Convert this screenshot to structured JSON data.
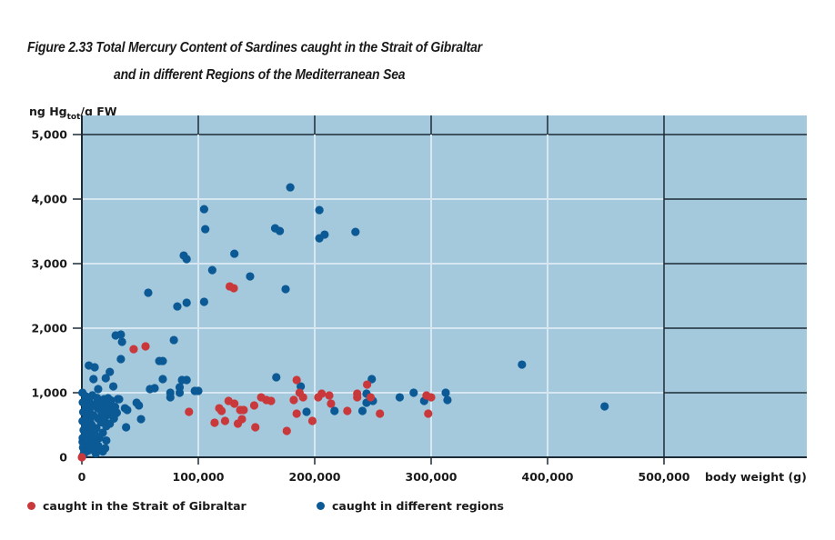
{
  "chart_data": {
    "type": "scatter",
    "title_line1": "Figure 2.33  Total Mercury Content of Sardines caught in the Strait of Gibraltar",
    "title_line2": "and in different Regions of the Mediterranean Sea",
    "ylabel_main": "ng Hg",
    "ylabel_sub": "tot",
    "ylabel_tail": "/g FW",
    "xlabel": "body weight (g)",
    "xlim": [
      0,
      625000
    ],
    "ylim": [
      0,
      5300
    ],
    "x_ticks": [
      0,
      100000,
      200000,
      300000,
      400000,
      500000
    ],
    "x_tick_labels": [
      "0",
      "100,000",
      "200,000",
      "300,000",
      "400,000",
      "500,000"
    ],
    "y_ticks": [
      0,
      1000,
      2000,
      3000,
      4000,
      5000
    ],
    "y_tick_labels": [
      "0",
      "1,000",
      "2,000",
      "3,000",
      "4,000",
      "5,000"
    ],
    "grid": true,
    "legend_position": "bottom-left",
    "colors": {
      "background": "#a4c8dc",
      "grid_light": "#d6e7f1",
      "grid_dark": "#1c2a36",
      "gibraltar": "#c9383b",
      "regions": "#0b5a96"
    },
    "series": [
      {
        "name": "caught in the Strait of Gibraltar",
        "color": "#c9383b",
        "points": [
          [
            0,
            0
          ],
          [
            44500,
            1675
          ],
          [
            54700,
            1718
          ],
          [
            92000,
            704
          ],
          [
            127000,
            2647
          ],
          [
            130500,
            2619
          ],
          [
            114000,
            535
          ],
          [
            118000,
            760
          ],
          [
            120000,
            718
          ],
          [
            123000,
            563
          ],
          [
            126000,
            873
          ],
          [
            131000,
            831
          ],
          [
            134000,
            521
          ],
          [
            136000,
            732
          ],
          [
            139000,
            732
          ],
          [
            137500,
            591
          ],
          [
            148000,
            803
          ],
          [
            149000,
            465
          ],
          [
            154000,
            929
          ],
          [
            158500,
            887
          ],
          [
            162500,
            873
          ],
          [
            176000,
            408
          ],
          [
            182000,
            887
          ],
          [
            184500,
            1197
          ],
          [
            184500,
            676
          ],
          [
            187000,
            1000
          ],
          [
            190000,
            929
          ],
          [
            198000,
            563
          ],
          [
            203000,
            929
          ],
          [
            206000,
            986
          ],
          [
            212500,
            958
          ],
          [
            214000,
            831
          ],
          [
            228000,
            718
          ],
          [
            236500,
            986
          ],
          [
            236500,
            929
          ],
          [
            245000,
            1126
          ],
          [
            248000,
            929
          ],
          [
            256000,
            676
          ],
          [
            296000,
            958
          ],
          [
            300000,
            929
          ],
          [
            297500,
            676
          ]
        ]
      },
      {
        "name": "caught in different regions",
        "color": "#0b5a96",
        "points": [
          [
            105000,
            3844
          ],
          [
            106000,
            3534
          ],
          [
            131000,
            3154
          ],
          [
            87500,
            3126
          ],
          [
            90000,
            3070
          ],
          [
            112000,
            2900
          ],
          [
            144500,
            2802
          ],
          [
            105000,
            2408
          ],
          [
            90000,
            2394
          ],
          [
            82000,
            2337
          ],
          [
            57000,
            2549
          ],
          [
            179000,
            4182
          ],
          [
            166000,
            3548
          ],
          [
            170000,
            3506
          ],
          [
            175000,
            2605
          ],
          [
            204000,
            3830
          ],
          [
            208500,
            3450
          ],
          [
            204000,
            3393
          ],
          [
            235000,
            3492
          ],
          [
            378000,
            1436
          ],
          [
            449000,
            788
          ],
          [
            79000,
            1816
          ],
          [
            29000,
            1887
          ],
          [
            33500,
            1901
          ],
          [
            34500,
            1788
          ],
          [
            33500,
            1521
          ],
          [
            6000,
            1422
          ],
          [
            11000,
            1394
          ],
          [
            66500,
            1492
          ],
          [
            69500,
            1492
          ],
          [
            24000,
            1323
          ],
          [
            20500,
            1225
          ],
          [
            10000,
            1211
          ],
          [
            69500,
            1211
          ],
          [
            86000,
            1197
          ],
          [
            90000,
            1197
          ],
          [
            167000,
            1239
          ],
          [
            249000,
            1211
          ],
          [
            188000,
            1098
          ],
          [
            27000,
            1098
          ],
          [
            14000,
            1056
          ],
          [
            58500,
            1056
          ],
          [
            62500,
            1070
          ],
          [
            76000,
            1000
          ],
          [
            76000,
            929
          ],
          [
            84000,
            1000
          ],
          [
            84000,
            1084
          ],
          [
            97000,
            1028
          ],
          [
            100000,
            1028
          ],
          [
            193000,
            704
          ],
          [
            217000,
            718
          ],
          [
            241000,
            718
          ],
          [
            244500,
            986
          ],
          [
            247500,
            887
          ],
          [
            244500,
            845
          ],
          [
            250000,
            873
          ],
          [
            273000,
            929
          ],
          [
            285000,
            1000
          ],
          [
            294000,
            873
          ],
          [
            312500,
            1000
          ],
          [
            314000,
            887
          ],
          [
            49000,
            803
          ],
          [
            50800,
            591
          ],
          [
            47000,
            845
          ],
          [
            38000,
            465
          ],
          [
            39000,
            732
          ],
          [
            37000,
            760
          ],
          [
            22500,
            915
          ],
          [
            31000,
            901
          ],
          [
            29000,
            676
          ],
          [
            500,
            1000
          ],
          [
            800,
            850
          ],
          [
            1200,
            700
          ],
          [
            600,
            560
          ],
          [
            1500,
            420
          ],
          [
            700,
            300
          ],
          [
            1000,
            150
          ],
          [
            2000,
            60
          ],
          [
            3000,
            950
          ],
          [
            3500,
            780
          ],
          [
            4000,
            620
          ],
          [
            2800,
            480
          ],
          [
            4500,
            340
          ],
          [
            3800,
            200
          ],
          [
            5000,
            100
          ],
          [
            6000,
            880
          ],
          [
            6500,
            720
          ],
          [
            7000,
            560
          ],
          [
            5500,
            420
          ],
          [
            7500,
            280
          ],
          [
            8000,
            140
          ],
          [
            9000,
            960
          ],
          [
            9500,
            800
          ],
          [
            10000,
            650
          ],
          [
            8500,
            500
          ],
          [
            11000,
            360
          ],
          [
            10500,
            220
          ],
          [
            12000,
            60
          ],
          [
            13000,
            920
          ],
          [
            13500,
            760
          ],
          [
            14000,
            600
          ],
          [
            12500,
            450
          ],
          [
            15000,
            300
          ],
          [
            16000,
            840
          ],
          [
            17000,
            690
          ],
          [
            16500,
            540
          ],
          [
            18000,
            380
          ],
          [
            19000,
            900
          ],
          [
            20000,
            750
          ],
          [
            19500,
            600
          ],
          [
            21000,
            480
          ],
          [
            22000,
            820
          ],
          [
            23000,
            660
          ],
          [
            24000,
            520
          ],
          [
            25000,
            880
          ],
          [
            26000,
            740
          ],
          [
            27500,
            600
          ],
          [
            28500,
            780
          ],
          [
            30000,
            690
          ],
          [
            32000,
            900
          ],
          [
            2000,
            80
          ],
          [
            1000,
            30
          ],
          [
            600,
            240
          ],
          [
            3000,
            330
          ],
          [
            6000,
            180
          ],
          [
            9000,
            120
          ],
          [
            12000,
            240
          ],
          [
            15000,
            130
          ],
          [
            18000,
            90
          ],
          [
            20000,
            140
          ],
          [
            21000,
            260
          ],
          [
            8000,
            380
          ],
          [
            4000,
            520
          ],
          [
            7000,
            660
          ],
          [
            11000,
            820
          ],
          [
            14000,
            180
          ]
        ]
      }
    ]
  }
}
